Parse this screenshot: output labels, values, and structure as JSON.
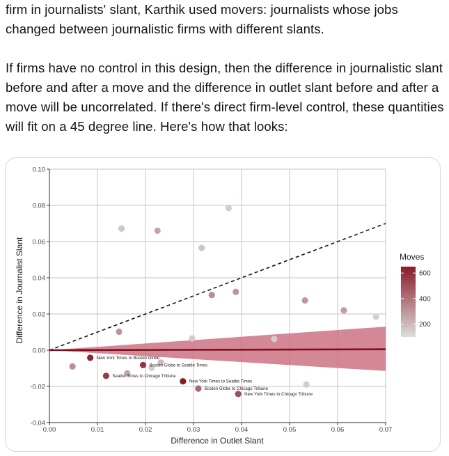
{
  "tweet": {
    "paragraph1": "firm in journalists' slant, Karthik used movers: journalists whose jobs changed between journalistic firms with different slants.",
    "paragraph2": "If firms have no control in this design, then the difference in journalistic slant before and after a move and the difference in outlet slant before and after a move will be uncorrelated. If there's direct firm-level control, these quantities will fit on a 45 degree line. Here's how that looks:"
  },
  "chart_data": {
    "type": "scatter",
    "title": "",
    "xlabel": "Difference in Outlet Slant",
    "ylabel": "Difference in Journalist Slant",
    "xlim": [
      0.0,
      0.07
    ],
    "ylim": [
      -0.04,
      0.1
    ],
    "x_ticks": [
      "0.00",
      "0.01",
      "0.02",
      "0.03",
      "0.04",
      "0.05",
      "0.06",
      "0.07"
    ],
    "y_ticks": [
      "-0.04",
      "-0.02",
      "0.00",
      "0.02",
      "0.04",
      "0.06",
      "0.08",
      "0.10"
    ],
    "grid": true,
    "legend": {
      "title": "Moves",
      "placement": "right",
      "ticks": [
        "600",
        "400",
        "200"
      ],
      "min": 100,
      "max": 650,
      "color_low": "#dcdcdc",
      "color_high": "#8b1a28"
    },
    "reference_line": {
      "type": "45-degree",
      "style": "dashed",
      "from": [
        0.0,
        0.0
      ],
      "to": [
        0.07,
        0.07
      ]
    },
    "fit_line": {
      "from": [
        0.0,
        0.0
      ],
      "to": [
        0.07,
        0.0005
      ],
      "color": "#7a1020"
    },
    "confidence_band": {
      "x": [
        0.0,
        0.07
      ],
      "upper": [
        0.0,
        0.013
      ],
      "lower": [
        0.0,
        -0.0115
      ],
      "color": "#c96a7a"
    },
    "points": [
      {
        "x": 0.0048,
        "y": -0.009,
        "moves": 320,
        "label": ""
      },
      {
        "x": 0.0085,
        "y": -0.0042,
        "moves": 620,
        "label": "New York Times to Boston Globe"
      },
      {
        "x": 0.0118,
        "y": -0.0142,
        "moves": 560,
        "label": "Seattle Times to Chicago Tribune"
      },
      {
        "x": 0.0145,
        "y": 0.0102,
        "moves": 300,
        "label": ""
      },
      {
        "x": 0.015,
        "y": 0.0672,
        "moves": 170,
        "label": ""
      },
      {
        "x": 0.0162,
        "y": -0.0128,
        "moves": 260,
        "label": ""
      },
      {
        "x": 0.0195,
        "y": -0.0082,
        "moves": 580,
        "label": "Boston Globe to Seattle Times"
      },
      {
        "x": 0.0213,
        "y": -0.0098,
        "moves": 140,
        "label": ""
      },
      {
        "x": 0.0225,
        "y": 0.066,
        "moves": 260,
        "label": ""
      },
      {
        "x": 0.0232,
        "y": -0.0068,
        "moves": 200,
        "label": ""
      },
      {
        "x": 0.0278,
        "y": -0.0172,
        "moves": 650,
        "label": "New York Times to Seattle Times"
      },
      {
        "x": 0.0297,
        "y": 0.0065,
        "moves": 150,
        "label": ""
      },
      {
        "x": 0.031,
        "y": -0.0212,
        "moves": 430,
        "label": "Boston Globe to Chicago Tribune"
      },
      {
        "x": 0.0317,
        "y": 0.0565,
        "moves": 170,
        "label": ""
      },
      {
        "x": 0.0338,
        "y": 0.0305,
        "moves": 330,
        "label": ""
      },
      {
        "x": 0.0373,
        "y": 0.0785,
        "moves": 150,
        "label": ""
      },
      {
        "x": 0.0388,
        "y": 0.0322,
        "moves": 300,
        "label": ""
      },
      {
        "x": 0.0393,
        "y": -0.0242,
        "moves": 500,
        "label": "New York Times to Chicago Tribune"
      },
      {
        "x": 0.0468,
        "y": 0.0062,
        "moves": 150,
        "label": ""
      },
      {
        "x": 0.0532,
        "y": 0.0275,
        "moves": 290,
        "label": ""
      },
      {
        "x": 0.0535,
        "y": -0.019,
        "moves": 150,
        "label": ""
      },
      {
        "x": 0.0613,
        "y": 0.022,
        "moves": 280,
        "label": ""
      },
      {
        "x": 0.068,
        "y": 0.0185,
        "moves": 140,
        "label": ""
      }
    ]
  }
}
